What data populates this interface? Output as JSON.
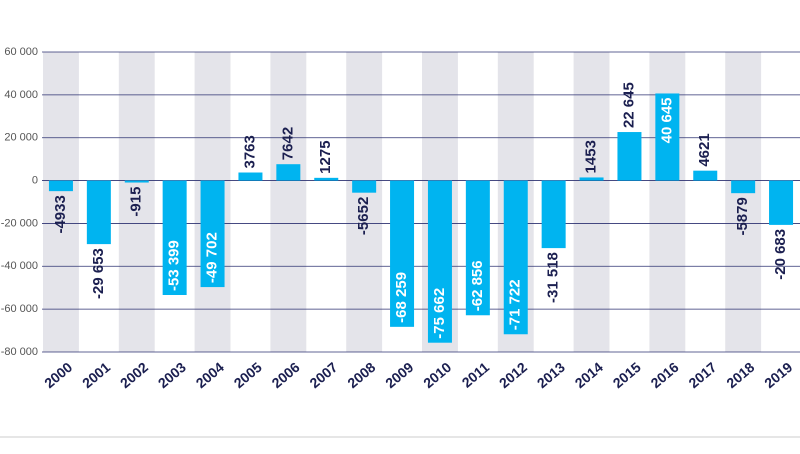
{
  "chart_data": {
    "type": "bar",
    "categories": [
      "2000",
      "2001",
      "2002",
      "2003",
      "2004",
      "2005",
      "2006",
      "2007",
      "2008",
      "2009",
      "2010",
      "2011",
      "2012",
      "2013",
      "2014",
      "2015",
      "2016",
      "2017",
      "2018",
      "2019"
    ],
    "values": [
      -4933,
      -29653,
      -915,
      -53399,
      -49702,
      3763,
      7642,
      1275,
      -5652,
      -68259,
      -75662,
      -62856,
      -71722,
      -31518,
      1453,
      22645,
      40645,
      4621,
      -5879,
      -20683
    ],
    "value_labels": [
      "-4933",
      "-29 653",
      "-915",
      "-53 399",
      "-49 702",
      "3763",
      "7642",
      "1275",
      "-5652",
      "-68 259",
      "-75 662",
      "-62 856",
      "-71 722",
      "-31 518",
      "1453",
      "22 645",
      "40 645",
      "4621",
      "-5879",
      "-20 683"
    ],
    "color": "#00b4f0",
    "ylim": [
      -80000,
      60000
    ],
    "yticks": [
      {
        "value": -80000,
        "label": "-80 000"
      },
      {
        "value": -60000,
        "label": "-60 000"
      },
      {
        "value": -40000,
        "label": "-40 000"
      },
      {
        "value": -20000,
        "label": "-20 000"
      },
      0,
      {
        "value": 20000,
        "label": "20 000"
      },
      {
        "value": 40000,
        "label": "40 000"
      },
      {
        "value": 60000,
        "label": "60 000"
      }
    ],
    "grid": true
  }
}
